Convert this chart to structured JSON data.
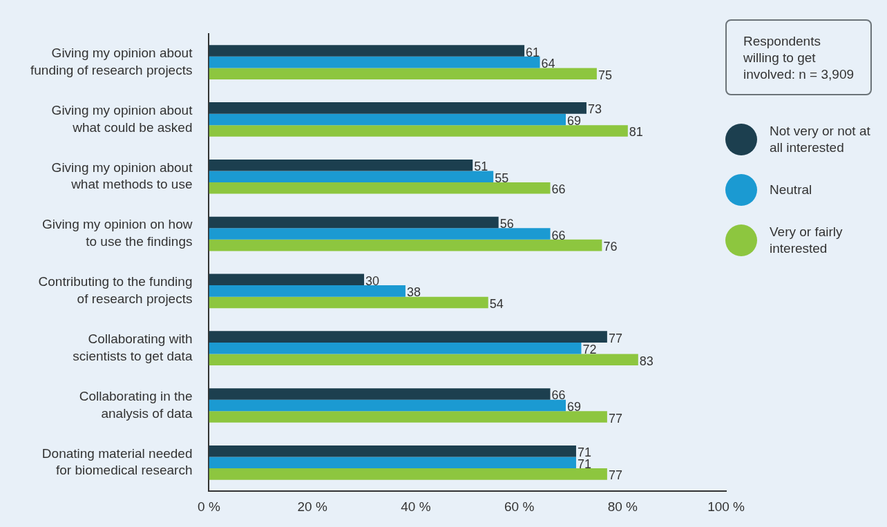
{
  "chart_data": {
    "type": "bar",
    "orientation": "horizontal",
    "categories": [
      "Giving my opinion about\nfunding of research projects",
      "Giving my opinion about\nwhat could be asked",
      "Giving my opinion about\nwhat methods to use",
      "Giving my opinion on how\nto use the findings",
      "Contributing to the funding\nof research projects",
      "Collaborating with\nscientists to get data",
      "Collaborating in the\nanalysis of data",
      "Donating material needed\nfor biomedical research"
    ],
    "series": [
      {
        "name": "Not very or not at all interested",
        "color": "#1c3f4f",
        "values": [
          61,
          73,
          51,
          56,
          30,
          77,
          66,
          71
        ]
      },
      {
        "name": "Neutral",
        "color": "#1b9ad2",
        "values": [
          64,
          69,
          55,
          66,
          38,
          72,
          69,
          71
        ]
      },
      {
        "name": "Very or fairly interested",
        "color": "#8dc63f",
        "values": [
          75,
          81,
          66,
          76,
          54,
          83,
          77,
          77
        ]
      }
    ],
    "xlim": [
      0,
      100
    ],
    "xticks": [
      {
        "value": 0,
        "label": "0 %"
      },
      {
        "value": 20,
        "label": "20 %"
      },
      {
        "value": 40,
        "label": "40 %"
      },
      {
        "value": 60,
        "label": "60 %"
      },
      {
        "value": 80,
        "label": "80 %"
      },
      {
        "value": 100,
        "label": "100 %"
      }
    ],
    "data_labels": true,
    "legend": "right",
    "annotations": [
      "Respondents willing to get involved: n = 3,909"
    ]
  }
}
